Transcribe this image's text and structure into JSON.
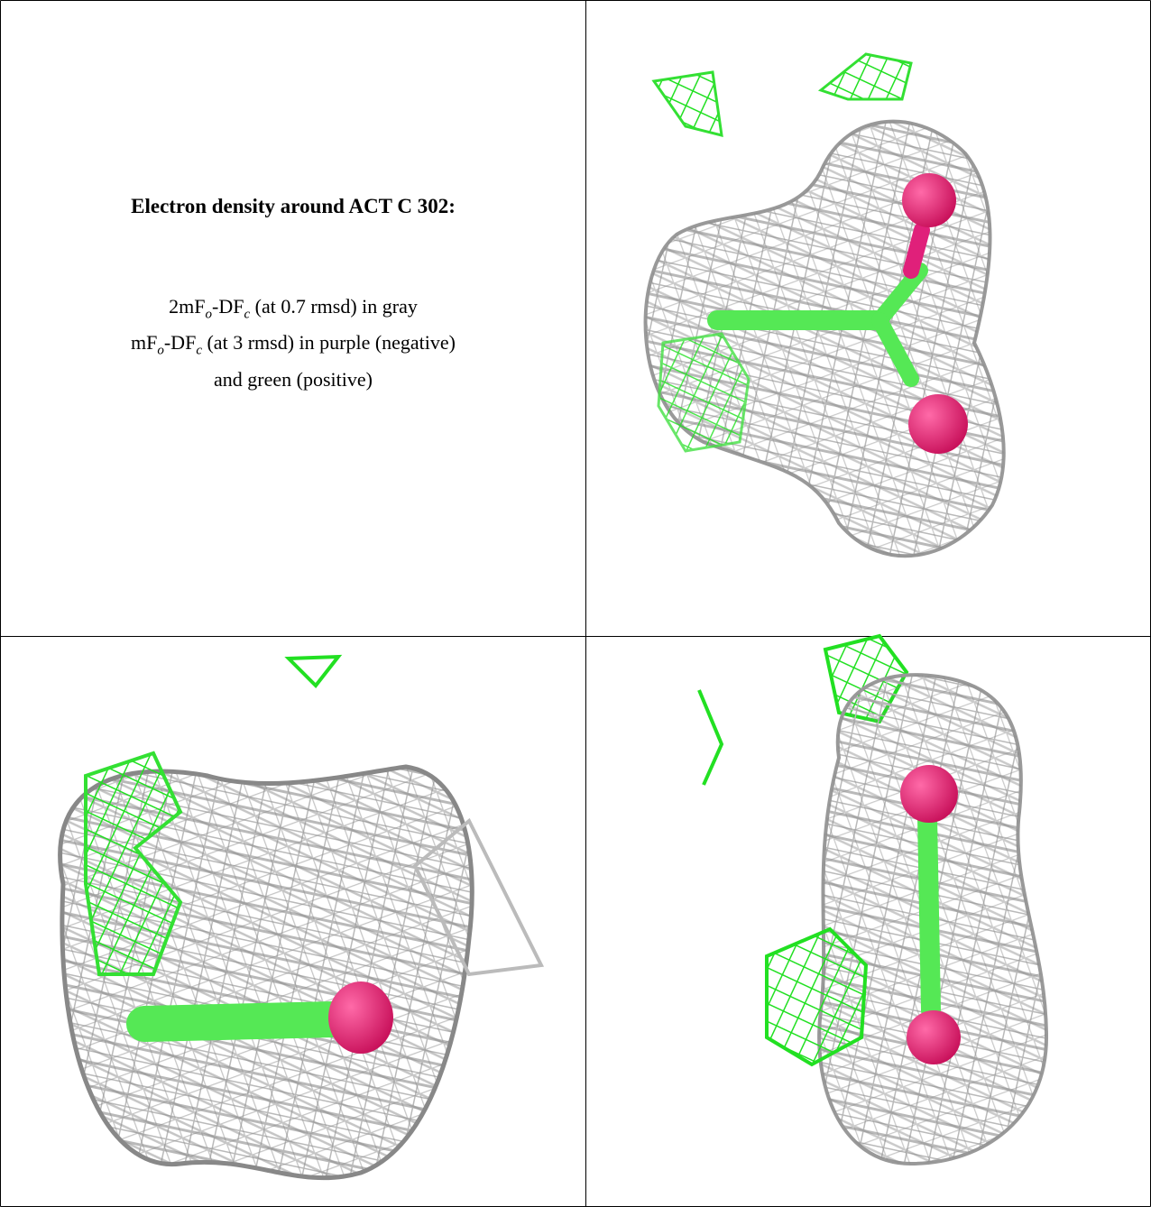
{
  "caption": {
    "title": "Electron density around ACT C 302:",
    "lines": [
      [
        "2mF",
        "o",
        "-DF",
        "c",
        " (at 0.7 rmsd) in gray"
      ],
      [
        "mF",
        "o",
        "-DF",
        "c",
        " (at 3 rmsd) in purple (negative)"
      ],
      [
        "and green (positive)"
      ]
    ]
  }
}
